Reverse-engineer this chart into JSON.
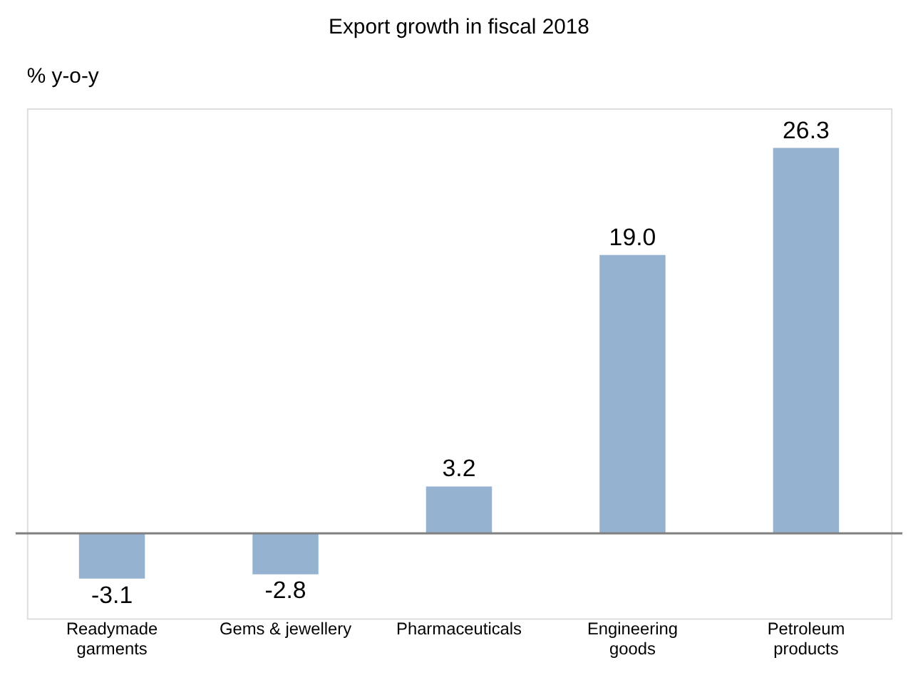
{
  "chart_data": {
    "type": "bar",
    "title": "Export growth in fiscal 2018",
    "ylabel": "% y-o-y",
    "categories": [
      "Readymade\ngarments",
      "Gems & jewellery",
      "Pharmaceuticals",
      "Engineering\ngoods",
      "Petroleum\nproducts"
    ],
    "values": [
      -3.1,
      -2.8,
      3.2,
      19.0,
      26.3
    ],
    "value_labels": [
      "-3.1",
      "-2.8",
      "3.2",
      "19.0",
      "26.3"
    ],
    "color": "#95b3d0"
  }
}
